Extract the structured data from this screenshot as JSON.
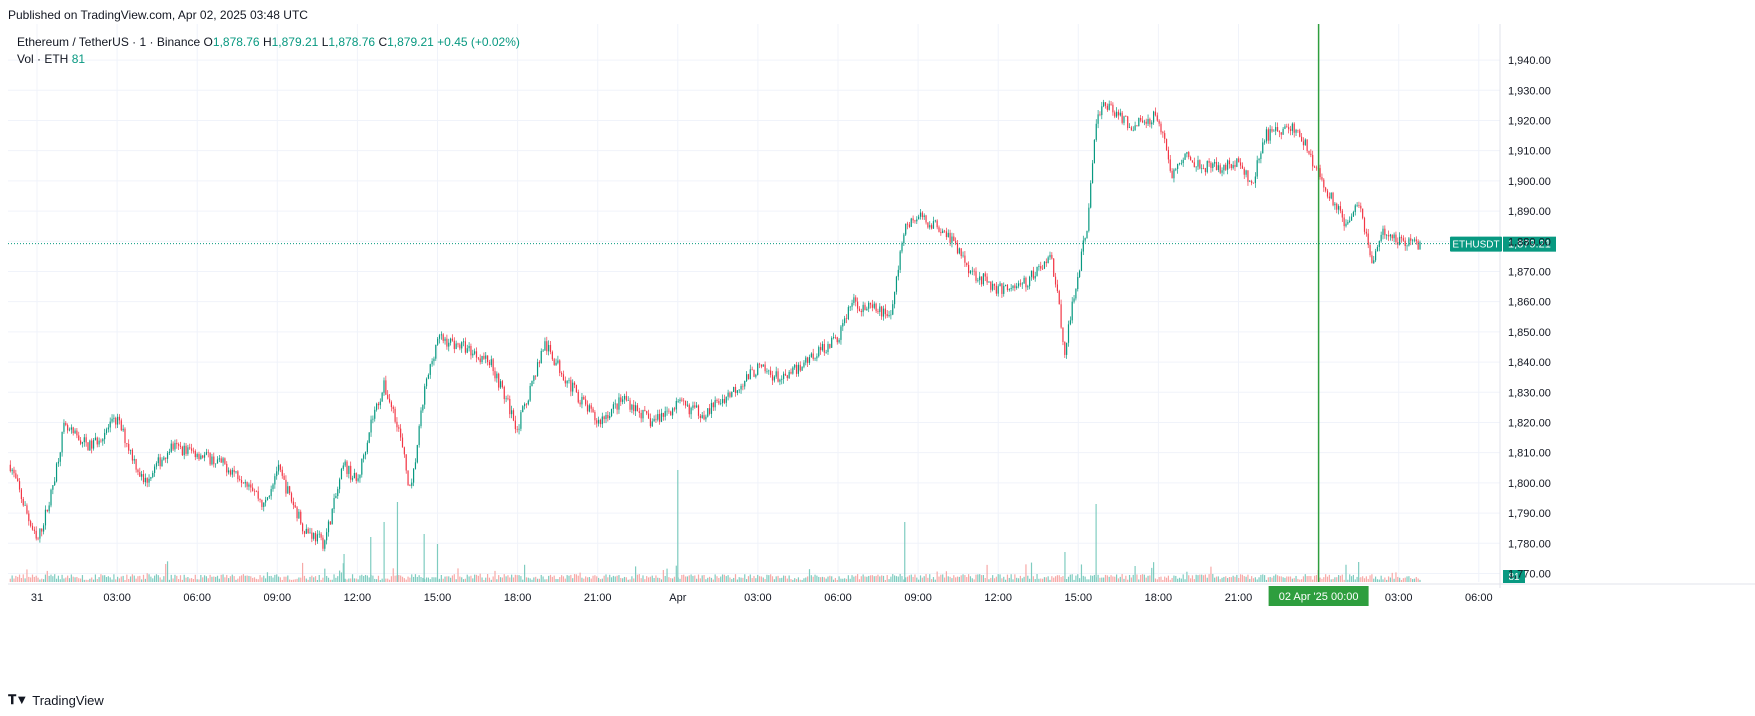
{
  "header": {
    "published": "Published on TradingView.com, Apr 02, 2025 03:48 UTC"
  },
  "legend": {
    "symbol": "Ethereum / TetherUS · 1 · Binance",
    "o_label": "O",
    "o_value": "1,878.76",
    "h_label": "H",
    "h_value": "1,879.21",
    "l_label": "L",
    "l_value": "1,878.76",
    "c_label": "C",
    "c_value": "1,879.21",
    "change": "+0.45 (+0.02%)",
    "vol_label": "Vol · ETH",
    "vol_value": "81"
  },
  "colors": {
    "up": "#089981",
    "down": "#f23645",
    "vol_up": "#7fccc0",
    "vol_down": "#f7a9a7",
    "grid": "#f0f3fa",
    "crosshair": "#2e9e3e",
    "price_badge": "#089981"
  },
  "brand": {
    "icon": "tradingview-logo-icon",
    "name": "TradingView"
  },
  "chart_data": {
    "type": "candlestick",
    "symbol": "ETHUSDT",
    "last_price": 1879.21,
    "last_price_label": "1,879.21",
    "volume_badge": "81",
    "crosshair_label": "02 Apr '25   00:00",
    "crosshair_time": "2025-04-02T00:00",
    "ylim": [
      1762,
      1945
    ],
    "y_ticks": [
      "1,770.00",
      "1,780.00",
      "1,790.00",
      "1,800.00",
      "1,810.00",
      "1,820.00",
      "1,830.00",
      "1,840.00",
      "1,850.00",
      "1,860.00",
      "1,870.00",
      "1,880.00",
      "1,890.00",
      "1,900.00",
      "1,910.00",
      "1,920.00",
      "1,930.00",
      "1,940.00"
    ],
    "x_ticks": [
      "31",
      "03:00",
      "06:00",
      "09:00",
      "12:00",
      "15:00",
      "18:00",
      "21:00",
      "Apr",
      "03:00",
      "06:00",
      "09:00",
      "12:00",
      "15:00",
      "18:00",
      "21:00",
      "02 Apr '25",
      "03:00",
      "06:00"
    ],
    "xlim": [
      "2025-03-31T00:00",
      "2025-04-02T06:00"
    ],
    "price_path": [
      [
        "2025-03-30T23:00",
        1806
      ],
      [
        "2025-03-31T00:00",
        1780
      ],
      [
        "2025-03-31T00:30",
        1795
      ],
      [
        "2025-03-31T01:00",
        1818
      ],
      [
        "2025-03-31T02:00",
        1812
      ],
      [
        "2025-03-31T03:00",
        1821
      ],
      [
        "2025-03-31T04:00",
        1800
      ],
      [
        "2025-03-31T05:00",
        1812
      ],
      [
        "2025-03-31T06:00",
        1810
      ],
      [
        "2025-03-31T07:00",
        1806
      ],
      [
        "2025-03-31T08:00",
        1800
      ],
      [
        "2025-03-31T08:30",
        1792
      ],
      [
        "2025-03-31T09:00",
        1805
      ],
      [
        "2025-03-31T10:00",
        1785
      ],
      [
        "2025-03-31T10:45",
        1780
      ],
      [
        "2025-03-31T11:30",
        1806
      ],
      [
        "2025-03-31T12:00",
        1800
      ],
      [
        "2025-03-31T12:30",
        1820
      ],
      [
        "2025-03-31T13:00",
        1832
      ],
      [
        "2025-03-31T13:30",
        1820
      ],
      [
        "2025-03-31T14:00",
        1796
      ],
      [
        "2025-03-31T14:30",
        1830
      ],
      [
        "2025-03-31T15:00",
        1848
      ],
      [
        "2025-03-31T16:00",
        1845
      ],
      [
        "2025-03-31T17:00",
        1840
      ],
      [
        "2025-03-31T18:00",
        1818
      ],
      [
        "2025-03-31T19:00",
        1846
      ],
      [
        "2025-03-31T20:00",
        1832
      ],
      [
        "2025-03-31T21:00",
        1820
      ],
      [
        "2025-03-31T22:00",
        1828
      ],
      [
        "2025-03-31T23:00",
        1820
      ],
      [
        "2025-04-01T00:00",
        1826
      ],
      [
        "2025-04-01T01:00",
        1823
      ],
      [
        "2025-04-01T02:00",
        1830
      ],
      [
        "2025-04-01T03:00",
        1838
      ],
      [
        "2025-04-01T04:00",
        1834
      ],
      [
        "2025-04-01T05:00",
        1842
      ],
      [
        "2025-04-01T06:00",
        1848
      ],
      [
        "2025-04-01T06:30",
        1860
      ],
      [
        "2025-04-01T07:00",
        1858
      ],
      [
        "2025-04-01T08:00",
        1856
      ],
      [
        "2025-04-01T08:30",
        1885
      ],
      [
        "2025-04-01T09:00",
        1888
      ],
      [
        "2025-04-01T10:00",
        1884
      ],
      [
        "2025-04-01T11:00",
        1870
      ],
      [
        "2025-04-01T12:00",
        1864
      ],
      [
        "2025-04-01T13:00",
        1866
      ],
      [
        "2025-04-01T14:00",
        1875
      ],
      [
        "2025-04-01T14:30",
        1844
      ],
      [
        "2025-04-01T15:00",
        1870
      ],
      [
        "2025-04-01T15:20",
        1885
      ],
      [
        "2025-04-01T15:40",
        1920
      ],
      [
        "2025-04-01T16:00",
        1926
      ],
      [
        "2025-04-01T17:00",
        1918
      ],
      [
        "2025-04-01T18:00",
        1922
      ],
      [
        "2025-04-01T18:30",
        1902
      ],
      [
        "2025-04-01T19:00",
        1908
      ],
      [
        "2025-04-01T20:00",
        1904
      ],
      [
        "2025-04-01T21:00",
        1906
      ],
      [
        "2025-04-01T21:30",
        1898
      ],
      [
        "2025-04-01T22:00",
        1915
      ],
      [
        "2025-04-01T23:00",
        1918
      ],
      [
        "2025-04-01T23:30",
        1912
      ],
      [
        "2025-04-02T00:00",
        1902
      ],
      [
        "2025-04-02T01:00",
        1886
      ],
      [
        "2025-04-02T01:30",
        1894
      ],
      [
        "2025-04-02T02:00",
        1873
      ],
      [
        "2025-04-02T02:30",
        1884
      ],
      [
        "2025-04-02T03:00",
        1880
      ],
      [
        "2025-04-02T03:48",
        1879.21
      ]
    ],
    "volume_spikes": [
      [
        "2025-03-31T11:30",
        28
      ],
      [
        "2025-03-31T12:30",
        45
      ],
      [
        "2025-03-31T13:00",
        60
      ],
      [
        "2025-03-31T13:30",
        80
      ],
      [
        "2025-03-31T14:30",
        48
      ],
      [
        "2025-03-31T15:00",
        38
      ],
      [
        "2025-04-01T00:00",
        112
      ],
      [
        "2025-04-01T08:30",
        60
      ],
      [
        "2025-04-01T14:30",
        30
      ],
      [
        "2025-04-01T15:40",
        78
      ],
      [
        "2025-04-02T01:30",
        20
      ]
    ]
  }
}
